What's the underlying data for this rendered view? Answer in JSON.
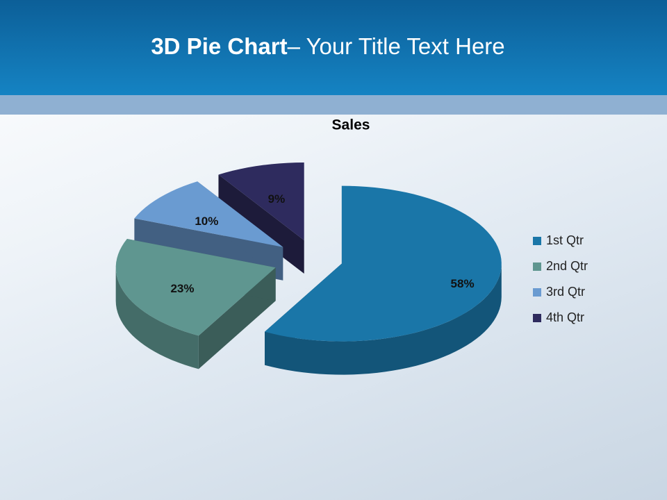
{
  "slide": {
    "title_bold": "3D Pie Chart",
    "title_rest": "– Your Title Text Here"
  },
  "chart_data": {
    "type": "pie",
    "title": "Sales",
    "series": [
      {
        "name": "Sales",
        "categories": [
          "1st Qtr",
          "2nd Qtr",
          "3rd Qtr",
          "4th Qtr"
        ],
        "values": [
          58,
          23,
          10,
          9
        ],
        "value_labels": [
          "58%",
          "23%",
          "10%",
          "9%"
        ],
        "colors": [
          "#1a76a8",
          "#5f9690",
          "#6a9bd1",
          "#2e2b5e"
        ]
      }
    ],
    "legend": "right"
  }
}
